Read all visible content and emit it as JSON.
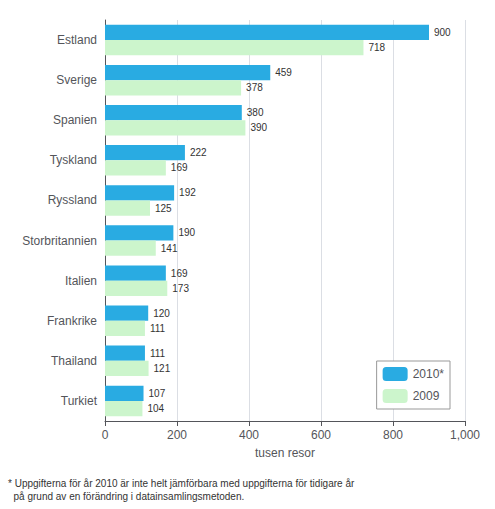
{
  "chart_data": {
    "type": "bar",
    "orientation": "horizontal",
    "categories": [
      "Turkiet",
      "Thailand",
      "Frankrike",
      "Italien",
      "Storbritannien",
      "Ryssland",
      "Tyskland",
      "Spanien",
      "Sverige",
      "Estland"
    ],
    "series": [
      {
        "name": "2010*",
        "color": "#29abe2",
        "values": [
          107,
          111,
          120,
          169,
          190,
          192,
          222,
          380,
          459,
          900
        ]
      },
      {
        "name": "2009",
        "color": "#ccf5cc",
        "values": [
          104,
          121,
          111,
          173,
          141,
          125,
          169,
          390,
          378,
          718
        ]
      }
    ],
    "xlim": [
      0,
      1000
    ],
    "xticks": [
      0,
      200,
      400,
      600,
      800,
      1000
    ],
    "xlabel": "tusen resor",
    "grid": true,
    "legend": "lower right",
    "data_labels": true,
    "annotations": [
      "* Uppgifterna för år 2010 är inte helt jämförbara med uppgifterna för tidigare år\n  på grund av en förändring i datainsamlingsmetoden."
    ]
  }
}
